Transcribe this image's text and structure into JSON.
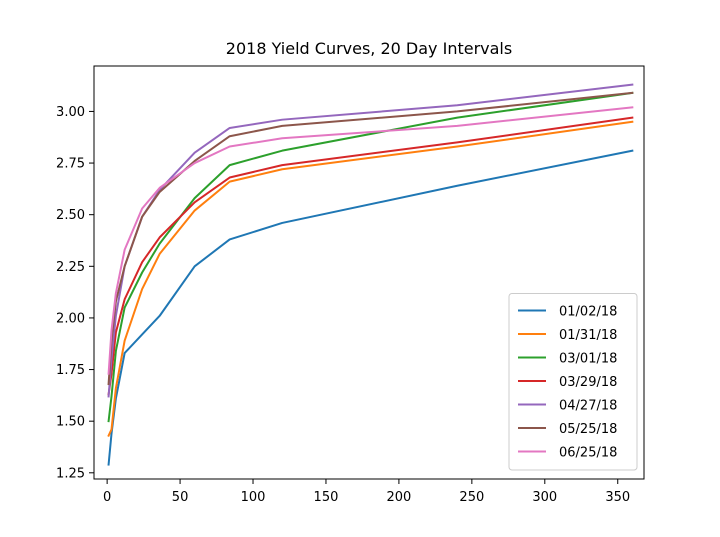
{
  "chart_data": {
    "type": "line",
    "title": "2018 Yield Curves, 20 Day Intervals",
    "xlabel": "",
    "ylabel": "",
    "xlim": [
      -9,
      368
    ],
    "ylim": [
      1.22,
      3.22
    ],
    "x": [
      1,
      3,
      6,
      12,
      24,
      36,
      60,
      84,
      120,
      240,
      360
    ],
    "x_ticks": [
      0,
      50,
      100,
      150,
      200,
      250,
      300,
      350
    ],
    "x_tick_labels": [
      "0",
      "50",
      "100",
      "150",
      "200",
      "250",
      "300",
      "350"
    ],
    "y_ticks": [
      1.25,
      1.5,
      1.75,
      2.0,
      2.25,
      2.5,
      2.75,
      3.0
    ],
    "y_tick_labels": [
      "1.25",
      "1.50",
      "1.75",
      "2.00",
      "2.25",
      "2.50",
      "2.75",
      "3.00"
    ],
    "grid": false,
    "legend_position": "lower-right",
    "series": [
      {
        "name": "01/02/18",
        "color": "#1f77b4",
        "values": [
          1.29,
          1.44,
          1.61,
          1.83,
          1.92,
          2.01,
          2.25,
          2.38,
          2.46,
          2.64,
          2.81
        ]
      },
      {
        "name": "01/31/18",
        "color": "#ff7f0e",
        "values": [
          1.43,
          1.46,
          1.66,
          1.89,
          2.14,
          2.31,
          2.52,
          2.66,
          2.72,
          2.83,
          2.95
        ]
      },
      {
        "name": "03/01/18",
        "color": "#2ca02c",
        "values": [
          1.5,
          1.62,
          1.84,
          2.05,
          2.22,
          2.36,
          2.58,
          2.74,
          2.81,
          2.97,
          3.09
        ]
      },
      {
        "name": "03/29/18",
        "color": "#d62728",
        "values": [
          1.63,
          1.73,
          1.93,
          2.09,
          2.27,
          2.39,
          2.56,
          2.68,
          2.74,
          2.85,
          2.97
        ]
      },
      {
        "name": "04/27/18",
        "color": "#9467bd",
        "values": [
          1.62,
          1.8,
          2.01,
          2.25,
          2.49,
          2.62,
          2.8,
          2.92,
          2.96,
          3.03,
          3.13
        ]
      },
      {
        "name": "05/25/18",
        "color": "#8c564b",
        "values": [
          1.68,
          1.89,
          2.08,
          2.25,
          2.49,
          2.61,
          2.76,
          2.88,
          2.93,
          3.0,
          3.09
        ]
      },
      {
        "name": "06/25/18",
        "color": "#e377c2",
        "values": [
          1.73,
          1.94,
          2.12,
          2.33,
          2.53,
          2.63,
          2.75,
          2.83,
          2.87,
          2.93,
          3.02
        ]
      }
    ]
  }
}
